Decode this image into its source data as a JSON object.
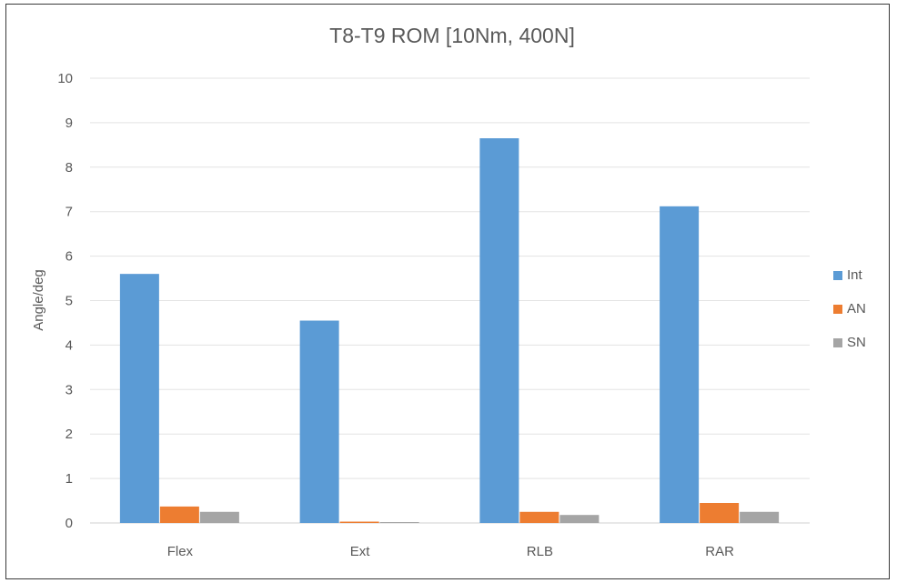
{
  "chart_data": {
    "type": "bar",
    "title": "T8-T9 ROM [10Nm, 400N]",
    "xlabel": "",
    "ylabel": "Angle/deg",
    "ylim": [
      0,
      10
    ],
    "yticks": [
      0,
      1,
      2,
      3,
      4,
      5,
      6,
      7,
      8,
      9,
      10
    ],
    "categories": [
      "Flex",
      "Ext",
      "RLB",
      "RAR"
    ],
    "series": [
      {
        "name": "Int",
        "color": "#5b9bd5",
        "values": [
          5.6,
          4.55,
          8.65,
          7.12
        ]
      },
      {
        "name": "AN",
        "color": "#ed7d31",
        "values": [
          0.37,
          0.03,
          0.25,
          0.45
        ]
      },
      {
        "name": "SN",
        "color": "#a5a5a5",
        "values": [
          0.25,
          0.02,
          0.18,
          0.25
        ]
      }
    ],
    "grid": true,
    "legend_position": "right"
  }
}
